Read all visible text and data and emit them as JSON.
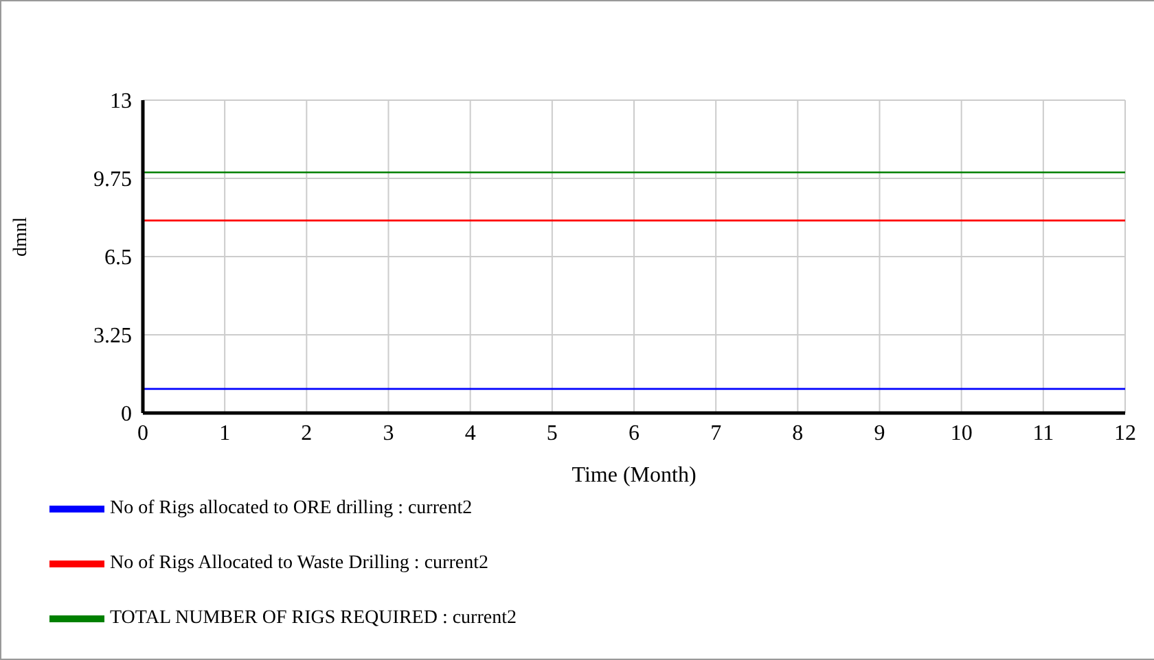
{
  "chart_data": {
    "type": "line",
    "xlabel": "Time (Month)",
    "ylabel": "dmnl",
    "x": [
      0,
      12
    ],
    "xlim": [
      0,
      12
    ],
    "xticks": [
      0,
      1,
      2,
      3,
      4,
      5,
      6,
      7,
      8,
      9,
      10,
      11,
      12
    ],
    "ylim": [
      0,
      13
    ],
    "yticks": [
      0,
      3.25,
      6.5,
      9.75,
      13
    ],
    "grid": true,
    "legend": "bottom",
    "marker": "none",
    "series": [
      {
        "name": "No of Rigs allocated to ORE drilling : current2",
        "color": "#0000ff",
        "values": [
          1,
          1
        ]
      },
      {
        "name": "No of Rigs Allocated to Waste Drilling : current2",
        "color": "#ff0000",
        "values": [
          8,
          8
        ]
      },
      {
        "name": "TOTAL NUMBER OF RIGS REQUIRED : current2",
        "color": "#008000",
        "values": [
          10,
          10
        ]
      }
    ]
  }
}
